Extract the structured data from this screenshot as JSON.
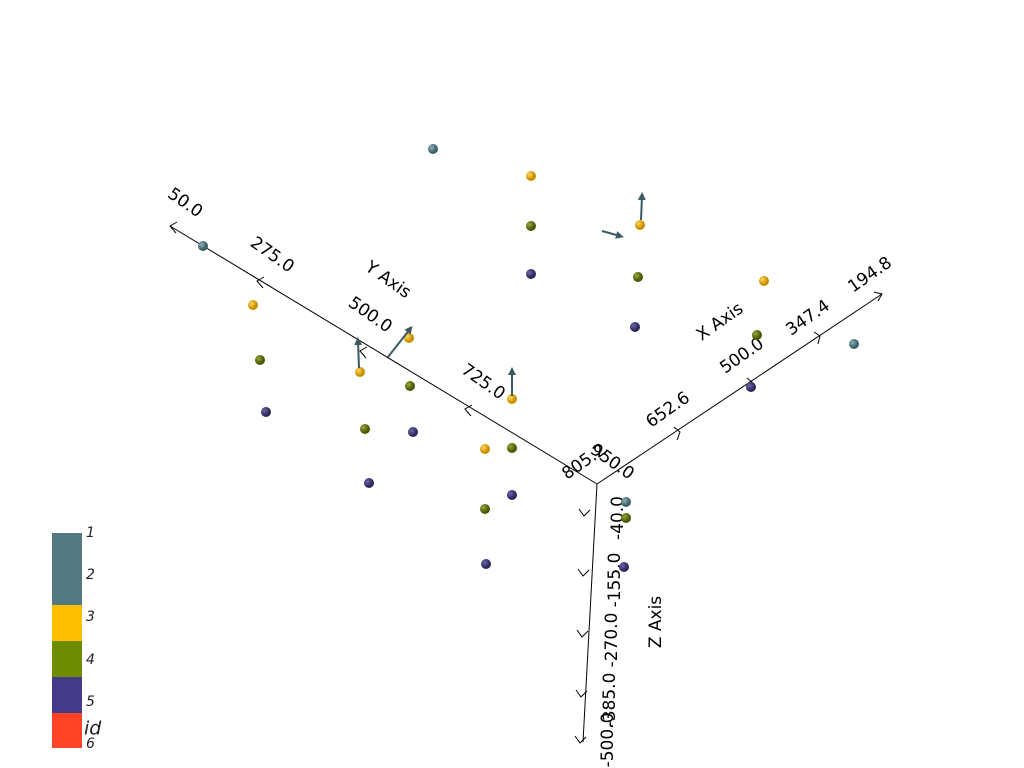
{
  "axes": {
    "x": {
      "title": "X Axis",
      "ticks": [
        "194.8",
        "347.4",
        "500.0",
        "652.6",
        "805.2"
      ]
    },
    "y": {
      "title": "Y Axis",
      "ticks": [
        "50.0",
        "275.0",
        "500.0",
        "725.0",
        "950.0"
      ]
    },
    "z": {
      "title": "Z Axis",
      "ticks": [
        "-40.0",
        "-155.0",
        "-270.0",
        "-385.0",
        "-500.0"
      ]
    }
  },
  "legend": {
    "title": "id",
    "labels": [
      "1",
      "2",
      "3",
      "4",
      "5",
      "6"
    ]
  }
}
